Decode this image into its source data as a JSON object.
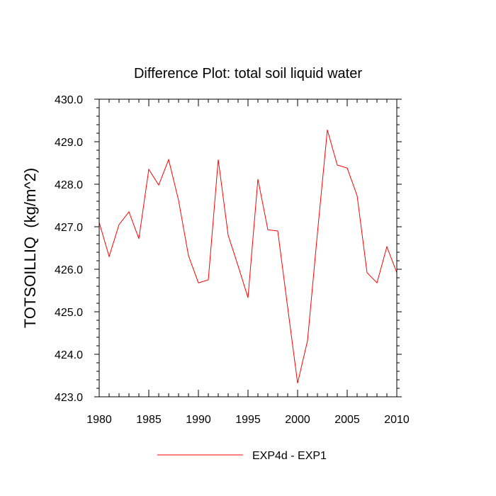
{
  "chart_data": {
    "type": "line",
    "title": "Difference Plot: total soil liquid water",
    "xlabel": "",
    "ylabel": "TOTSOILLIQ  (kg/m^2)",
    "xlim": [
      1980,
      2010
    ],
    "ylim": [
      423.0,
      430.0
    ],
    "xticks": [
      1980,
      1985,
      1990,
      1995,
      2000,
      2005,
      2010
    ],
    "yticks": [
      "423.0",
      "424.0",
      "425.0",
      "426.0",
      "427.0",
      "428.0",
      "429.0",
      "430.0"
    ],
    "legend_position": "bottom",
    "series": [
      {
        "name": "EXP4d - EXP1",
        "color": "#ff0000",
        "x": [
          1980,
          1981,
          1982,
          1983,
          1984,
          1985,
          1986,
          1987,
          1988,
          1989,
          1990,
          1991,
          1992,
          1993,
          1994,
          1995,
          1996,
          1997,
          1998,
          1999,
          2000,
          2001,
          2002,
          2003,
          2004,
          2005,
          2006,
          2007,
          2008,
          2009,
          2010
        ],
        "values": [
          427.1,
          426.3,
          427.05,
          427.35,
          426.72,
          428.35,
          427.98,
          428.58,
          427.62,
          426.32,
          425.68,
          425.75,
          428.58,
          426.8,
          426.08,
          425.33,
          428.12,
          426.93,
          426.9,
          425.1,
          423.32,
          424.32,
          426.85,
          429.28,
          428.45,
          428.38,
          427.73,
          425.92,
          425.68,
          426.53,
          425.92
        ]
      }
    ]
  }
}
